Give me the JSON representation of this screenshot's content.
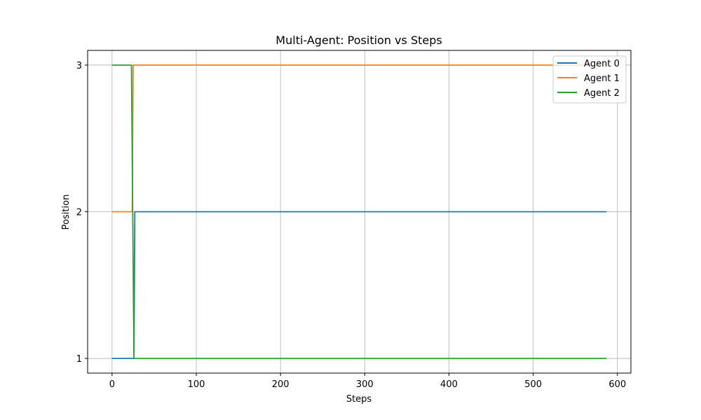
{
  "chart_data": {
    "type": "line",
    "title": "Multi-Agent: Position vs Steps",
    "xlabel": "Steps",
    "ylabel": "Position",
    "xlim": [
      -29,
      616
    ],
    "ylim": [
      0.9,
      3.1
    ],
    "xticks": [
      0,
      100,
      200,
      300,
      400,
      500,
      600
    ],
    "yticks": [
      1,
      2,
      3
    ],
    "grid": true,
    "legend_position": "top-right",
    "series": [
      {
        "name": "Agent 0",
        "color": "#1f77b4",
        "points": [
          [
            0,
            1
          ],
          [
            26,
            1
          ],
          [
            27,
            2
          ],
          [
            587,
            2
          ]
        ]
      },
      {
        "name": "Agent 1",
        "color": "#ff7f0e",
        "points": [
          [
            0,
            2
          ],
          [
            24,
            2
          ],
          [
            25,
            3
          ],
          [
            587,
            3
          ]
        ]
      },
      {
        "name": "Agent 2",
        "color": "#2ca02c",
        "points": [
          [
            0,
            3
          ],
          [
            23,
            3
          ],
          [
            26,
            1
          ],
          [
            587,
            1
          ]
        ]
      }
    ]
  }
}
